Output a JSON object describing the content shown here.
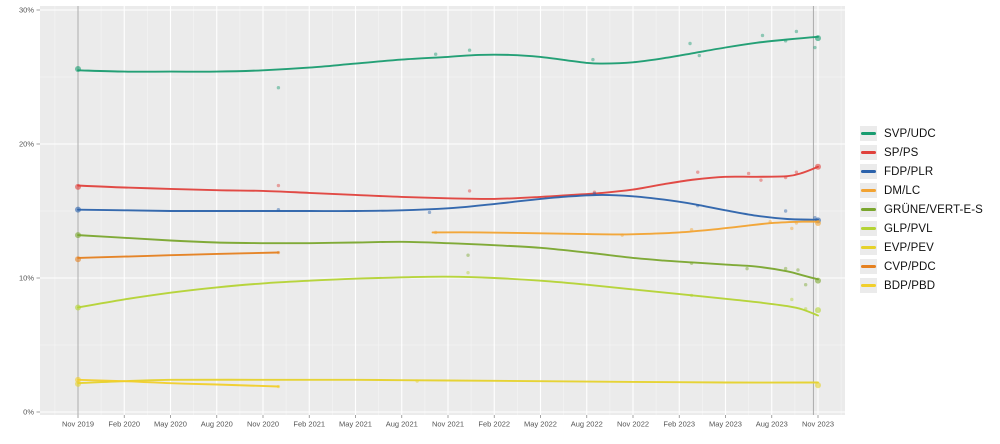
{
  "chart_data": {
    "type": "line",
    "description": "Smoothed opinion polling trends for Swiss parties, Nov 2019 federal election through Nov 2023 federal election, with individual poll dots and election-result markers",
    "x_tick_labels": [
      "Nov 2019",
      "Feb 2020",
      "May 2020",
      "Aug 2020",
      "Nov 2020",
      "Feb 2021",
      "May 2021",
      "Aug 2021",
      "Nov 2021",
      "Feb 2022",
      "May 2022",
      "Aug 2022",
      "Nov 2022",
      "Feb 2023",
      "May 2023",
      "Aug 2023",
      "Nov 2023"
    ],
    "y_tick_labels": [
      "0%",
      "10%",
      "20%",
      "30%"
    ],
    "y_tick_values": [
      0,
      10,
      20,
      30
    ],
    "y_minor_values": [
      5,
      15,
      25
    ],
    "ylim": [
      0,
      30.3
    ],
    "x_months_range": [
      0,
      48
    ],
    "reference_months": [
      0,
      47.7
    ],
    "legend_position": "right",
    "grid": true,
    "colors": {
      "plot_bg": "#ebebeb",
      "grid_major": "#ffffff",
      "grid_minor": "#f4f4f4",
      "reference_line": "#a3a3a3",
      "tick": "#8c8c8c",
      "axis_text": "#555555"
    },
    "series": [
      {
        "name": "SVP/UDC",
        "color": "#199c70",
        "trend": [
          [
            0,
            25.5
          ],
          [
            3,
            25.4
          ],
          [
            6,
            25.4
          ],
          [
            9,
            25.4
          ],
          [
            12,
            25.5
          ],
          [
            15,
            25.7
          ],
          [
            18,
            26.0
          ],
          [
            21,
            26.3
          ],
          [
            24,
            26.5
          ],
          [
            26,
            26.65
          ],
          [
            28,
            26.65
          ],
          [
            30,
            26.5
          ],
          [
            32,
            26.2
          ],
          [
            33,
            26.05
          ],
          [
            34,
            26.0
          ],
          [
            36,
            26.1
          ],
          [
            38,
            26.4
          ],
          [
            40,
            26.8
          ],
          [
            42,
            27.2
          ],
          [
            44,
            27.55
          ],
          [
            46,
            27.8
          ],
          [
            48,
            28.0
          ]
        ],
        "polls": [
          [
            13,
            24.2
          ],
          [
            23.2,
            26.7
          ],
          [
            25.4,
            27.0
          ],
          [
            33.4,
            26.3
          ],
          [
            39.7,
            27.5
          ],
          [
            40.3,
            26.6
          ],
          [
            44.4,
            28.1
          ],
          [
            45.9,
            27.7
          ],
          [
            46.6,
            28.4
          ],
          [
            47.8,
            27.2
          ]
        ],
        "results": [
          [
            0,
            25.6
          ],
          [
            48,
            27.9
          ]
        ]
      },
      {
        "name": "SP/PS",
        "color": "#e0413c",
        "trend": [
          [
            0,
            16.9
          ],
          [
            3,
            16.75
          ],
          [
            6,
            16.65
          ],
          [
            9,
            16.55
          ],
          [
            12,
            16.5
          ],
          [
            15,
            16.35
          ],
          [
            18,
            16.2
          ],
          [
            21,
            16.05
          ],
          [
            24,
            15.95
          ],
          [
            27,
            15.9
          ],
          [
            30,
            16.05
          ],
          [
            32,
            16.2
          ],
          [
            34,
            16.35
          ],
          [
            36,
            16.6
          ],
          [
            38,
            17.0
          ],
          [
            40,
            17.35
          ],
          [
            42,
            17.55
          ],
          [
            44,
            17.55
          ],
          [
            46,
            17.6
          ],
          [
            47,
            17.85
          ],
          [
            48,
            18.3
          ]
        ],
        "polls": [
          [
            13,
            16.9
          ],
          [
            25.4,
            16.5
          ],
          [
            33.5,
            16.4
          ],
          [
            40.2,
            17.9
          ],
          [
            43.5,
            17.8
          ],
          [
            44.3,
            17.3
          ],
          [
            45.9,
            17.5
          ],
          [
            46.6,
            17.9
          ]
        ],
        "results": [
          [
            0,
            16.8
          ],
          [
            48,
            18.3
          ]
        ]
      },
      {
        "name": "FDP/PLR",
        "color": "#2b62ab",
        "trend": [
          [
            0,
            15.1
          ],
          [
            3,
            15.05
          ],
          [
            6,
            15.0
          ],
          [
            9,
            15.0
          ],
          [
            12,
            15.0
          ],
          [
            15,
            15.0
          ],
          [
            18,
            15.0
          ],
          [
            21,
            15.05
          ],
          [
            24,
            15.2
          ],
          [
            26,
            15.4
          ],
          [
            28,
            15.65
          ],
          [
            30,
            15.9
          ],
          [
            32,
            16.1
          ],
          [
            34,
            16.2
          ],
          [
            36,
            16.1
          ],
          [
            38,
            15.85
          ],
          [
            40,
            15.5
          ],
          [
            42,
            15.05
          ],
          [
            44,
            14.65
          ],
          [
            46,
            14.4
          ],
          [
            48,
            14.35
          ]
        ],
        "polls": [
          [
            13,
            15.1
          ],
          [
            22.8,
            14.9
          ],
          [
            33.5,
            16.3
          ],
          [
            40.2,
            15.4
          ],
          [
            45.9,
            15.0
          ],
          [
            47.8,
            14.5
          ]
        ],
        "results": [
          [
            0,
            15.1
          ],
          [
            48,
            14.3
          ]
        ]
      },
      {
        "name": "DM/LC",
        "color": "#f2a332",
        "trend": [
          [
            23,
            13.4
          ],
          [
            26,
            13.4
          ],
          [
            29,
            13.35
          ],
          [
            32,
            13.3
          ],
          [
            35,
            13.25
          ],
          [
            37,
            13.3
          ],
          [
            39,
            13.4
          ],
          [
            41,
            13.6
          ],
          [
            43,
            13.85
          ],
          [
            45,
            14.1
          ],
          [
            47,
            14.2
          ],
          [
            48,
            14.2
          ]
        ],
        "polls": [
          [
            23.2,
            13.4
          ],
          [
            35.3,
            13.2
          ],
          [
            39.8,
            13.6
          ],
          [
            44.9,
            14.2
          ],
          [
            46.3,
            13.7
          ],
          [
            46.6,
            14.1
          ]
        ],
        "results": [
          [
            48,
            14.1
          ]
        ]
      },
      {
        "name": "GRÜNE/VERT-E-S",
        "color": "#7aa62e",
        "trend": [
          [
            0,
            13.2
          ],
          [
            3,
            13.0
          ],
          [
            6,
            12.8
          ],
          [
            9,
            12.65
          ],
          [
            12,
            12.6
          ],
          [
            15,
            12.6
          ],
          [
            18,
            12.65
          ],
          [
            21,
            12.7
          ],
          [
            24,
            12.6
          ],
          [
            27,
            12.45
          ],
          [
            30,
            12.25
          ],
          [
            33,
            11.9
          ],
          [
            36,
            11.5
          ],
          [
            38,
            11.3
          ],
          [
            40,
            11.15
          ],
          [
            42,
            11.0
          ],
          [
            44,
            10.85
          ],
          [
            46,
            10.5
          ],
          [
            47,
            10.2
          ],
          [
            48,
            9.9
          ]
        ],
        "polls": [
          [
            25.3,
            11.7
          ],
          [
            39.8,
            11.1
          ],
          [
            43.4,
            10.7
          ],
          [
            45.9,
            10.7
          ],
          [
            46.7,
            10.6
          ],
          [
            47.2,
            9.5
          ]
        ],
        "results": [
          [
            0,
            13.2
          ],
          [
            48,
            9.8
          ]
        ]
      },
      {
        "name": "GLP/PVL",
        "color": "#b4d334",
        "trend": [
          [
            0,
            7.8
          ],
          [
            3,
            8.4
          ],
          [
            6,
            8.9
          ],
          [
            9,
            9.3
          ],
          [
            12,
            9.6
          ],
          [
            15,
            9.8
          ],
          [
            18,
            9.95
          ],
          [
            21,
            10.05
          ],
          [
            24,
            10.1
          ],
          [
            27,
            10.0
          ],
          [
            30,
            9.8
          ],
          [
            33,
            9.5
          ],
          [
            36,
            9.15
          ],
          [
            39,
            8.8
          ],
          [
            42,
            8.45
          ],
          [
            44,
            8.2
          ],
          [
            46,
            7.9
          ],
          [
            47,
            7.65
          ],
          [
            48,
            7.2
          ]
        ],
        "polls": [
          [
            25.3,
            10.4
          ],
          [
            39.8,
            8.7
          ],
          [
            46.3,
            8.4
          ],
          [
            47.2,
            7.7
          ]
        ],
        "results": [
          [
            0,
            7.8
          ],
          [
            48,
            7.6
          ]
        ]
      },
      {
        "name": "EVP/PEV",
        "color": "#e6d22b",
        "trend": [
          [
            0,
            2.15
          ],
          [
            3,
            2.3
          ],
          [
            6,
            2.4
          ],
          [
            12,
            2.4
          ],
          [
            18,
            2.4
          ],
          [
            24,
            2.35
          ],
          [
            30,
            2.3
          ],
          [
            36,
            2.25
          ],
          [
            42,
            2.2
          ],
          [
            48,
            2.2
          ]
        ],
        "polls": [
          [
            22,
            2.3
          ]
        ],
        "results": [
          [
            0,
            2.1
          ],
          [
            48,
            2.0
          ]
        ]
      },
      {
        "name": "CVP/PDC",
        "color": "#e5801f",
        "trend": [
          [
            0,
            11.5
          ],
          [
            3,
            11.6
          ],
          [
            6,
            11.7
          ],
          [
            9,
            11.8
          ],
          [
            13,
            11.9
          ]
        ],
        "polls": [
          [
            13,
            11.9
          ]
        ],
        "results": [
          [
            0,
            11.4
          ]
        ]
      },
      {
        "name": "BDP/PBD",
        "color": "#f1cf2b",
        "trend": [
          [
            0,
            2.4
          ],
          [
            3,
            2.3
          ],
          [
            6,
            2.15
          ],
          [
            9,
            2.05
          ],
          [
            13,
            1.9
          ]
        ],
        "polls": [
          [
            13,
            1.9
          ]
        ],
        "results": [
          [
            0,
            2.4
          ]
        ]
      }
    ]
  }
}
